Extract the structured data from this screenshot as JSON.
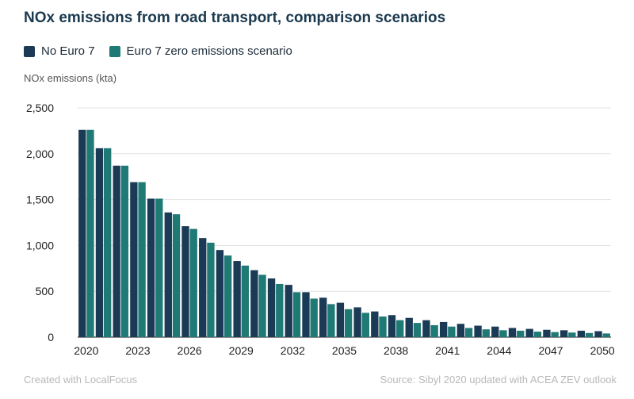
{
  "chart_data": {
    "type": "bar",
    "title": "NOx emissions from road transport, comparison scenarios",
    "ylabel": "NOx emissions (kta)",
    "ylim": [
      0,
      2500
    ],
    "yticks": [
      0,
      500,
      1000,
      1500,
      2000,
      2500
    ],
    "yticklabels": [
      "0",
      "500",
      "1,000",
      "1,500",
      "2,000",
      "2,500"
    ],
    "grid": true,
    "legend_position": "top-left",
    "categories": [
      "2020",
      "2021",
      "2022",
      "2023",
      "2024",
      "2025",
      "2026",
      "2027",
      "2028",
      "2029",
      "2030",
      "2031",
      "2032",
      "2033",
      "2034",
      "2035",
      "2036",
      "2037",
      "2038",
      "2039",
      "2040",
      "2041",
      "2042",
      "2043",
      "2044",
      "2045",
      "2046",
      "2047",
      "2048",
      "2049",
      "2050"
    ],
    "xticklabels": [
      "2020",
      "2023",
      "2026",
      "2029",
      "2032",
      "2035",
      "2038",
      "2041",
      "2044",
      "2047",
      "2050"
    ],
    "series": [
      {
        "name": "No Euro 7",
        "color": "#1b3a55",
        "values": [
          2260,
          2060,
          1870,
          1690,
          1510,
          1360,
          1210,
          1080,
          950,
          830,
          730,
          640,
          570,
          490,
          430,
          375,
          325,
          280,
          240,
          210,
          185,
          165,
          145,
          125,
          115,
          100,
          90,
          80,
          75,
          70,
          65
        ]
      },
      {
        "name": "Euro 7 zero emissions scenario",
        "color": "#1f7a76",
        "values": [
          2260,
          2060,
          1870,
          1690,
          1510,
          1340,
          1180,
          1030,
          890,
          780,
          680,
          580,
          490,
          420,
          360,
          305,
          265,
          225,
          185,
          155,
          130,
          115,
          100,
          85,
          75,
          70,
          60,
          55,
          50,
          45,
          40
        ]
      }
    ]
  },
  "footer": {
    "credit": "Created with LocalFocus",
    "source": "Source:  Sibyl 2020 updated with ACEA ZEV outlook"
  }
}
